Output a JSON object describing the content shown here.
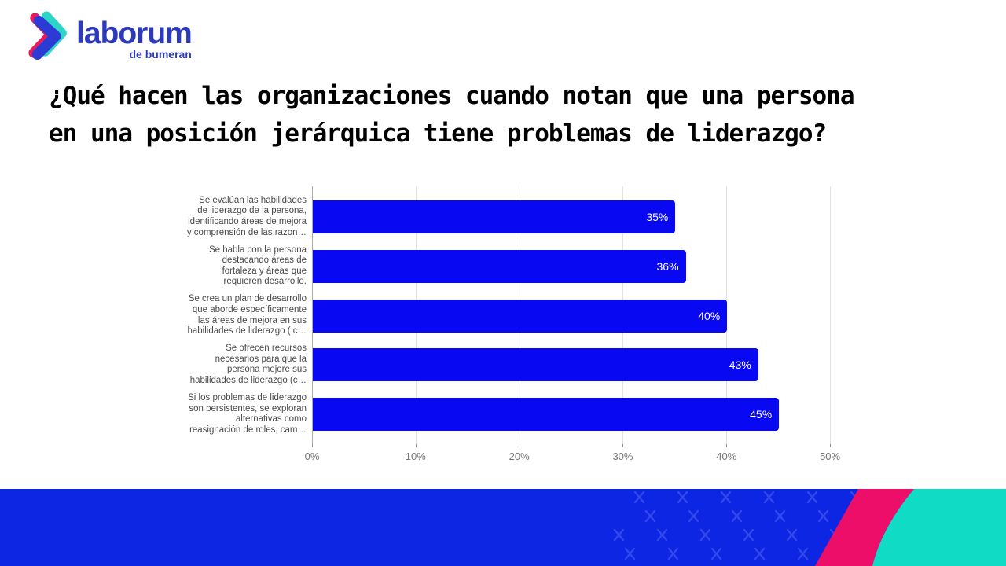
{
  "logo": {
    "brand": "laborum",
    "sub": "de bumeran"
  },
  "title": {
    "line1": "¿Qué hacen las organizaciones cuando notan que una persona",
    "line2": "en una posición jerárquica tiene problemas de liderazgo?"
  },
  "chart_data": {
    "type": "bar",
    "orientation": "horizontal",
    "title": "",
    "xlabel": "",
    "ylabel": "",
    "categories": [
      "Se evalúan las habilidades de liderazgo de la persona, identificando áreas de mejora y comprensión de las razon…",
      "Se habla con la persona destacando áreas de fortaleza y áreas que requieren desarrollo.",
      "Se crea un plan de desarrollo que aborde específicamente las áreas de mejora en sus habilidades de liderazgo ( c…",
      "Se ofrecen recursos necesarios para que la persona mejore sus habilidades de liderazgo (c…",
      "Si los problemas de liderazgo son persistentes, se exploran alternativas como reasignación de roles, cam…"
    ],
    "category_lines": [
      [
        "Se evalúan las habilidades",
        "de liderazgo de la persona,",
        "identificando áreas de mejora",
        "y comprensión de las razon…"
      ],
      [
        "Se habla con la persona",
        "destacando áreas de",
        "fortaleza y áreas que",
        "requieren desarrollo."
      ],
      [
        "Se crea un plan de desarrollo",
        "que aborde específicamente",
        "las áreas de mejora en sus",
        "habilidades de liderazgo ( c…"
      ],
      [
        "Se ofrecen recursos",
        "necesarios para que la",
        "persona mejore sus",
        "habilidades de liderazgo (c…"
      ],
      [
        "Si los problemas de liderazgo",
        "son persistentes, se exploran",
        "alternativas como",
        "reasignación de roles, cam…"
      ]
    ],
    "values": [
      35,
      36,
      40,
      43,
      45
    ],
    "value_labels": [
      "35%",
      "36%",
      "40%",
      "43%",
      "45%"
    ],
    "xticks": [
      0,
      10,
      20,
      30,
      40,
      50
    ],
    "xtick_labels": [
      "0%",
      "10%",
      "20%",
      "30%",
      "40%",
      "50%"
    ],
    "xlim": [
      0,
      55
    ],
    "grid": true,
    "legend": false
  },
  "theme": {
    "bar_color": "#0808f2",
    "value_label_color": "#ffffff",
    "band_blue": "#0d26e4",
    "band_pink": "#ec0e68",
    "band_teal": "#10dcc6",
    "x_mark": "#4055ee",
    "logo_blue": "#2c3bd6",
    "logo_pink": "#e81c5c",
    "logo_teal": "#2cd5c8"
  }
}
